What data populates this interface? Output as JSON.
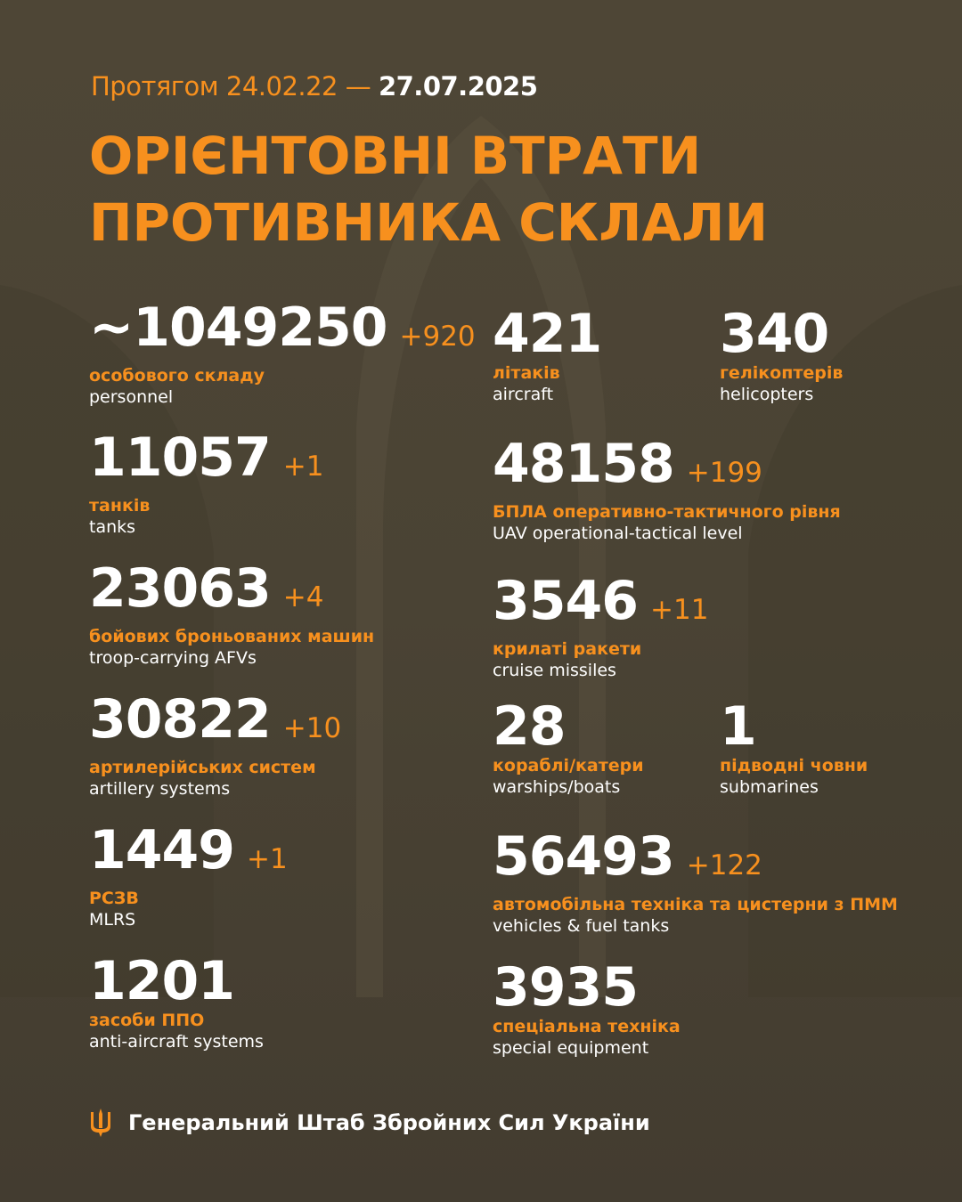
{
  "header": {
    "period_prefix": "Протягом 24.02.22 —",
    "period_end": "27.07.2025",
    "title_line1": "ОРІЄНТОВНІ ВТРАТИ",
    "title_line2": "ПРОТИВНИКА СКЛАЛИ"
  },
  "colors": {
    "accent": "#f7901e",
    "background": "#4a4334",
    "text": "#ffffff"
  },
  "stats": [
    {
      "value": "~1049250",
      "delta": "+920",
      "uk": "особового складу",
      "en": "personnel"
    },
    {
      "value": "11057",
      "delta": "+1",
      "uk": "танків",
      "en": "tanks"
    },
    {
      "value": "23063",
      "delta": "+4",
      "uk": "бойових броньованих машин",
      "en": "troop-carrying AFVs"
    },
    {
      "value": "30822",
      "delta": "+10",
      "uk": "артилерійських систем",
      "en": "artillery systems"
    },
    {
      "value": "1449",
      "delta": "+1",
      "uk": "РСЗВ",
      "en": "MLRS"
    },
    {
      "value": "1201",
      "delta": "",
      "uk": "засоби ППО",
      "en": "anti-aircraft systems"
    },
    {
      "value": "421",
      "delta": "",
      "uk": "літаків",
      "en": "aircraft"
    },
    {
      "value": "340",
      "delta": "",
      "uk": "гелікоптерів",
      "en": "helicopters"
    },
    {
      "value": "48158",
      "delta": "+199",
      "uk": "БПЛА оперативно-тактичного рівня",
      "en": "UAV operational-tactical level"
    },
    {
      "value": "3546",
      "delta": "+11",
      "uk": "крилаті ракети",
      "en": "cruise missiles"
    },
    {
      "value": "28",
      "delta": "",
      "uk": "кораблі/катери",
      "en": "warships/boats"
    },
    {
      "value": "1",
      "delta": "",
      "uk": "підводні човни",
      "en": "submarines"
    },
    {
      "value": "56493",
      "delta": "+122",
      "uk": "автомобільна техніка та цистерни з ПММ",
      "en": "vehicles & fuel tanks"
    },
    {
      "value": "3935",
      "delta": "",
      "uk": "спеціальна техніка",
      "en": "special equipment"
    }
  ],
  "footer": {
    "icon": "trident-icon",
    "text": "Генеральний Штаб Збройних Сил України"
  }
}
